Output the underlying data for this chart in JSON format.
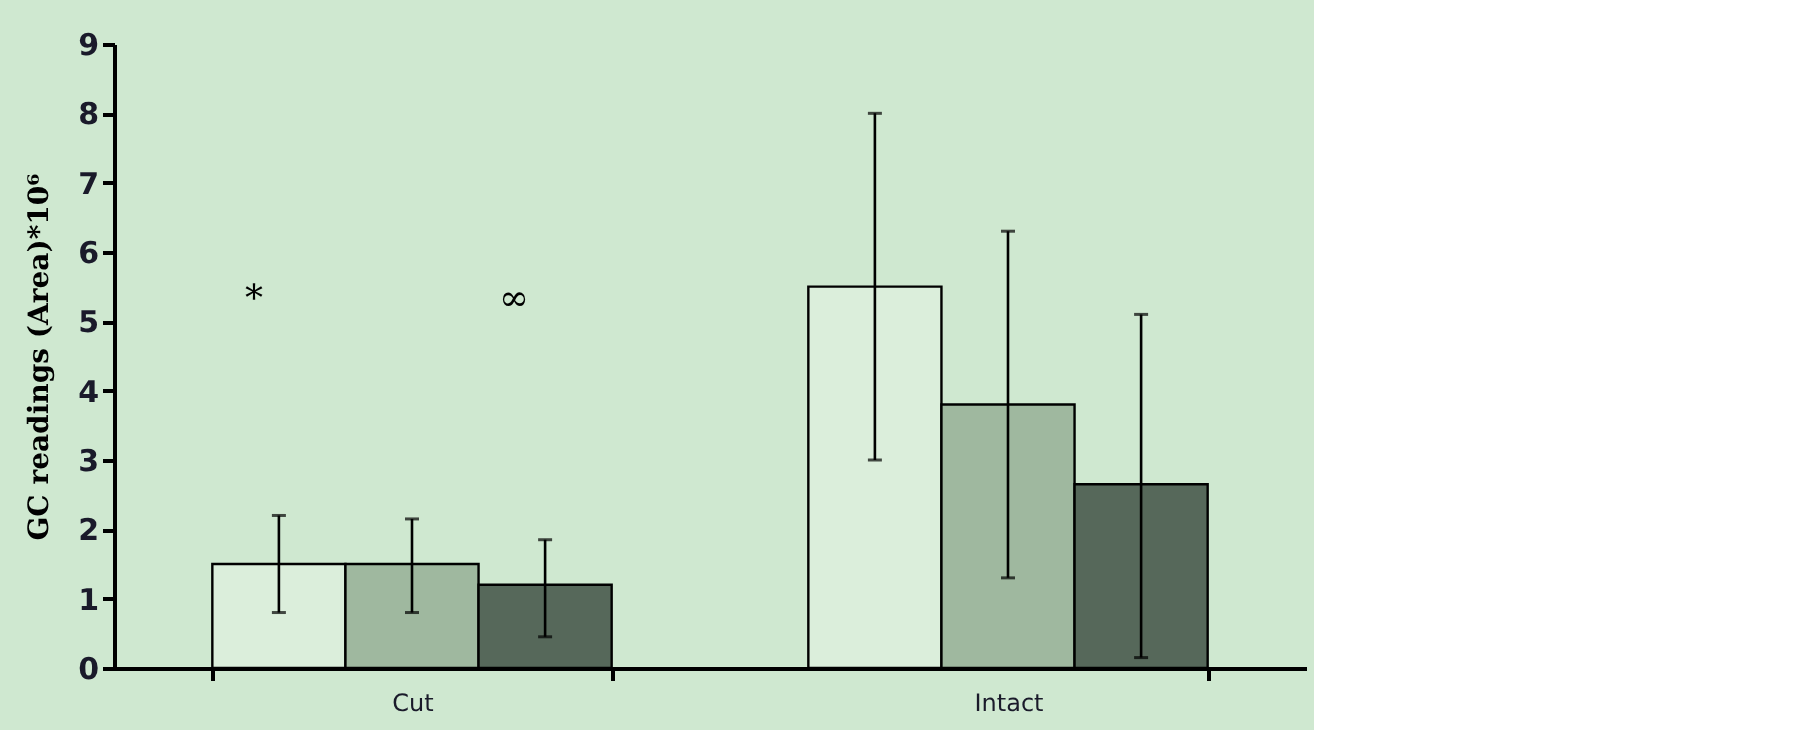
{
  "chart_data": {
    "type": "bar",
    "ylabel": "GC readings (Area)*10⁶",
    "categories": [
      "Cut",
      "Intact"
    ],
    "series": [
      {
        "color": "#dbeedb",
        "values": [
          1.5,
          5.5
        ],
        "errors": [
          [
            0.8,
            2.2
          ],
          [
            3.0,
            8.0
          ]
        ]
      },
      {
        "color": "#9fb89f",
        "values": [
          1.5,
          3.8
        ],
        "errors": [
          [
            0.8,
            2.15
          ],
          [
            1.3,
            6.3
          ]
        ]
      },
      {
        "color": "#56685a",
        "values": [
          1.2,
          2.65
        ],
        "errors": [
          [
            0.45,
            1.85
          ],
          [
            0.15,
            5.1
          ]
        ]
      }
    ],
    "ylim": [
      0,
      9
    ],
    "yticks": [
      0,
      1,
      2,
      3,
      4,
      5,
      6,
      7,
      8,
      9
    ],
    "grid": false,
    "legend": false,
    "annotations": [
      "*",
      "∞"
    ]
  }
}
